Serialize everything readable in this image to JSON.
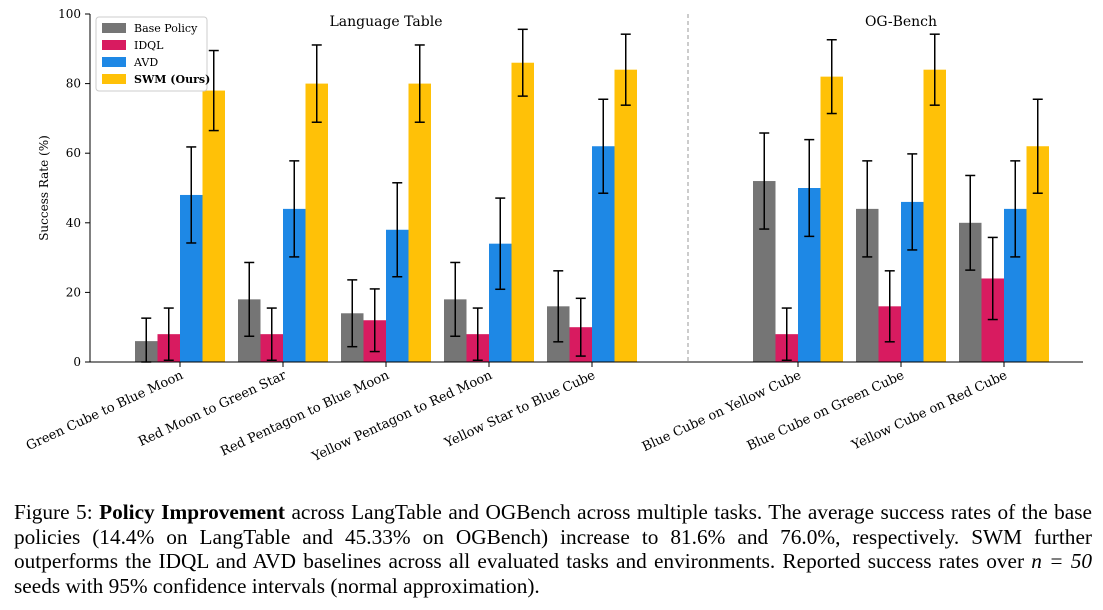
{
  "chart_data": {
    "type": "bar",
    "ylabel": "Success Rate (%)",
    "xlabel": "",
    "ylim": [
      0,
      100
    ],
    "yticks": [
      "0",
      "20",
      "40",
      "60",
      "80",
      "100"
    ],
    "grid": false,
    "legend_position": "top-left",
    "panels": [
      {
        "title": "Language Table",
        "categories": [
          "Green Cube to Blue Moon",
          "Red Moon to Green Star",
          "Red Pentagon to Blue Moon",
          "Yellow Pentagon to Red Moon",
          "Yellow Star to Blue Cube"
        ]
      },
      {
        "title": "OG-Bench",
        "categories": [
          "Blue Cube on Yellow Cube",
          "Blue Cube on Green Cube",
          "Yellow Cube on Red Cube"
        ]
      }
    ],
    "categories": [
      "Green Cube to Blue Moon",
      "Red Moon to Green Star",
      "Red Pentagon to Blue Moon",
      "Yellow Pentagon to Red Moon",
      "Yellow Star to Blue Cube",
      "Blue Cube on Yellow Cube",
      "Blue Cube on Green Cube",
      "Yellow Cube on Red Cube"
    ],
    "series": [
      {
        "name": "Base Policy",
        "color": "#757575",
        "values": [
          6,
          18,
          14,
          18,
          16,
          52,
          44,
          40
        ],
        "errors": [
          6.6,
          10.6,
          9.6,
          10.6,
          10.2,
          13.8,
          13.8,
          13.6
        ]
      },
      {
        "name": "IDQL",
        "color": "#d81b60",
        "values": [
          8,
          8,
          12,
          8,
          10,
          8,
          16,
          24
        ],
        "errors": [
          7.5,
          7.5,
          9.0,
          7.5,
          8.3,
          7.5,
          10.2,
          11.8
        ]
      },
      {
        "name": "AVD",
        "color": "#1e88e5",
        "values": [
          48,
          44,
          38,
          34,
          62,
          50,
          46,
          44
        ],
        "errors": [
          13.8,
          13.8,
          13.5,
          13.1,
          13.5,
          13.9,
          13.8,
          13.8
        ]
      },
      {
        "name": "SWM (Ours)",
        "color": "#ffc107",
        "values": [
          78,
          80,
          80,
          86,
          84,
          82,
          84,
          62
        ],
        "errors": [
          11.5,
          11.1,
          11.1,
          9.6,
          10.2,
          10.6,
          10.2,
          13.5
        ]
      }
    ]
  },
  "caption": {
    "label": "Figure 5:",
    "bold": "Policy Improvement",
    "text": " across LangTable and OGBench across multiple tasks. The average success rates of the base policies (14.4% on LangTable and 45.33% on OGBench) increase to 81.6% and 76.0%, respectively. SWM further outperforms the IDQL and AVD baselines across all evaluated tasks and environments. Reported success rates over ",
    "math": "n = 50",
    "text_end": " seeds with 95% confidence intervals (normal approximation)."
  }
}
